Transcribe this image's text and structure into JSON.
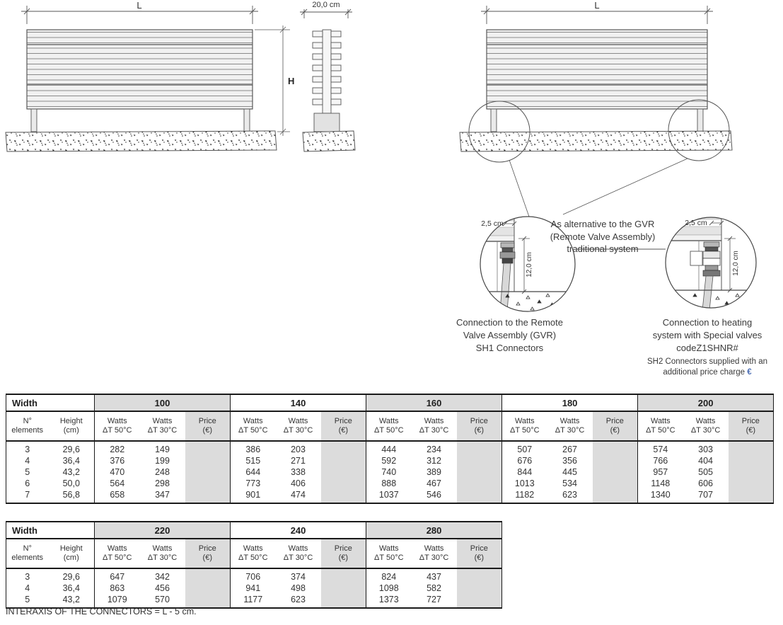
{
  "colors": {
    "table_shade": "#dcdcdc",
    "euro_blue": "#4a6cb3",
    "line": "#4a4a4a"
  },
  "drawings": {
    "front_left": {
      "length": "L",
      "height": "H"
    },
    "side": {
      "width": "20,0 cm"
    },
    "front_right": {
      "length": "L"
    },
    "detail_left": {
      "offset": "2,5 cm",
      "depth": "12,0 cm",
      "caption": [
        "Connection to the Remote",
        "Valve Assembly (GVR)",
        "SH1 Connectors"
      ]
    },
    "detail_right": {
      "offset": "2,5 cm",
      "depth": "12,0 cm",
      "caption": [
        "Connection to heating",
        "system with Special valves",
        "codeZ1SHNR#"
      ],
      "note": [
        "SH2 Connectors supplied with an",
        "additional price charge"
      ],
      "currency": "€"
    },
    "alt_note": [
      "As alternative to the GVR",
      "(Remote Valve Assembly)",
      "traditional system"
    ]
  },
  "tables": [
    {
      "width_label": "Width",
      "row_header_1": [
        "N°",
        "elements"
      ],
      "row_header_2": [
        "Height",
        "(cm)"
      ],
      "watts50": [
        "Watts",
        "ΔT 50°C"
      ],
      "watts30": [
        "Watts",
        "ΔT 30°C"
      ],
      "price": [
        "Price",
        "(€)"
      ],
      "groups": [
        "100",
        "140",
        "160",
        "180",
        "200"
      ],
      "rows": [
        {
          "n": "3",
          "h": "29,6",
          "v": [
            [
              "282",
              "149"
            ],
            [
              "386",
              "203"
            ],
            [
              "444",
              "234"
            ],
            [
              "507",
              "267"
            ],
            [
              "574",
              "303"
            ]
          ]
        },
        {
          "n": "4",
          "h": "36,4",
          "v": [
            [
              "376",
              "199"
            ],
            [
              "515",
              "271"
            ],
            [
              "592",
              "312"
            ],
            [
              "676",
              "356"
            ],
            [
              "766",
              "404"
            ]
          ]
        },
        {
          "n": "5",
          "h": "43,2",
          "v": [
            [
              "470",
              "248"
            ],
            [
              "644",
              "338"
            ],
            [
              "740",
              "389"
            ],
            [
              "844",
              "445"
            ],
            [
              "957",
              "505"
            ]
          ]
        },
        {
          "n": "6",
          "h": "50,0",
          "v": [
            [
              "564",
              "298"
            ],
            [
              "773",
              "406"
            ],
            [
              "888",
              "467"
            ],
            [
              "1013",
              "534"
            ],
            [
              "1148",
              "606"
            ]
          ]
        },
        {
          "n": "7",
          "h": "56,8",
          "v": [
            [
              "658",
              "347"
            ],
            [
              "901",
              "474"
            ],
            [
              "1037",
              "546"
            ],
            [
              "1182",
              "623"
            ],
            [
              "1340",
              "707"
            ]
          ]
        }
      ]
    },
    {
      "width_label": "Width",
      "row_header_1": [
        "N°",
        "elements"
      ],
      "row_header_2": [
        "Height",
        "(cm)"
      ],
      "watts50": [
        "Watts",
        "ΔT 50°C"
      ],
      "watts30": [
        "Watts",
        "ΔT 30°C"
      ],
      "price": [
        "Price",
        "(€)"
      ],
      "groups": [
        "220",
        "240",
        "280"
      ],
      "rows": [
        {
          "n": "3",
          "h": "29,6",
          "v": [
            [
              "647",
              "342"
            ],
            [
              "706",
              "374"
            ],
            [
              "824",
              "437"
            ]
          ]
        },
        {
          "n": "4",
          "h": "36,4",
          "v": [
            [
              "863",
              "456"
            ],
            [
              "941",
              "498"
            ],
            [
              "1098",
              "582"
            ]
          ]
        },
        {
          "n": "5",
          "h": "43,2",
          "v": [
            [
              "1079",
              "570"
            ],
            [
              "1177",
              "623"
            ],
            [
              "1373",
              "727"
            ]
          ]
        }
      ]
    }
  ],
  "footer": "INTERAXIS OF THE CONNECTORS = L - 5 cm."
}
